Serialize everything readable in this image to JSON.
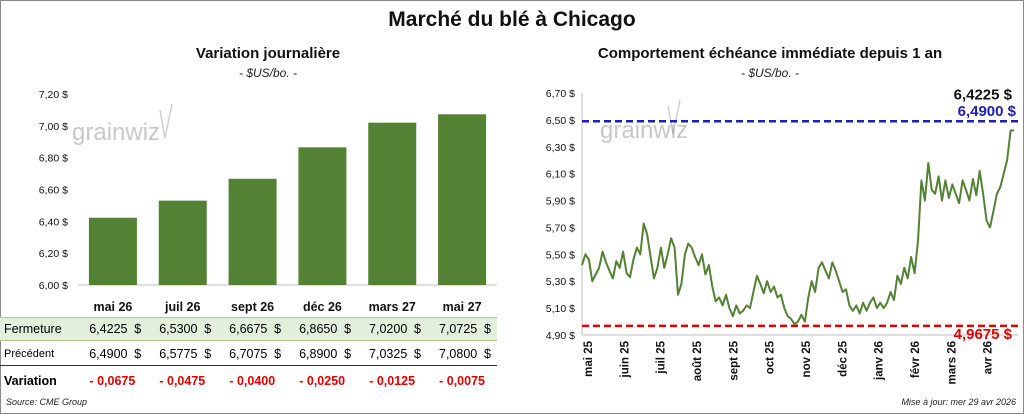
{
  "title": "Marché du blé à Chicago",
  "left_panel": {
    "title": "Variation journalière",
    "subtitle": "- $US/bo. -",
    "watermark": "grainwiz"
  },
  "right_panel": {
    "title": "Comportement échéance immédiate depuis 1 an",
    "subtitle": "- $US/bo. -",
    "watermark": "grainwiz",
    "last_label": "6,4225 $",
    "high_label": "6,4900 $",
    "low_label": "4,9675 $"
  },
  "table": {
    "rows": [
      {
        "label": "Fermeture",
        "values": [
          "6,4225",
          "6,5300",
          "6,6675",
          "6,8650",
          "7,0200",
          "7,0725"
        ],
        "unit": "$"
      },
      {
        "label": "Précédent",
        "values": [
          "6,4900",
          "6,5775",
          "6,7075",
          "6,8900",
          "7,0325",
          "7,0800"
        ],
        "unit": "$"
      },
      {
        "label": "Variation",
        "values": [
          "- 0,0675",
          "- 0,0475",
          "- 0,0400",
          "- 0,0250",
          "- 0,0125",
          "- 0,0075"
        ],
        "unit": ""
      }
    ]
  },
  "footer": {
    "source": "Source: CME Group",
    "updated": "Mise à jour: mer 29 avr 2026"
  },
  "colors": {
    "bar": "#548235",
    "line": "#548235",
    "high": "#1f1fb3",
    "low": "#e00000",
    "variation": "#e00000"
  },
  "chart_data": [
    {
      "type": "bar",
      "title": "Variation journalière",
      "subtitle": "- $US/bo. -",
      "categories": [
        "mai 26",
        "juil 26",
        "sept 26",
        "déc 26",
        "mars 27",
        "mai 27"
      ],
      "values": [
        6.4225,
        6.53,
        6.6675,
        6.865,
        7.02,
        7.0725
      ],
      "ylim": [
        6.0,
        7.2
      ],
      "yticks": [
        6.0,
        6.2,
        6.4,
        6.6,
        6.8,
        7.0,
        7.2
      ],
      "ytick_labels": [
        "6,00 $",
        "6,20 $",
        "6,40 $",
        "6,60 $",
        "6,80 $",
        "7,00 $",
        "7,20 $"
      ],
      "grid": false
    },
    {
      "type": "line",
      "title": "Comportement échéance immédiate depuis 1 an",
      "subtitle": "- $US/bo. -",
      "x_labels": [
        "mai 25",
        "juin 25",
        "juil 25",
        "août 25",
        "sept 25",
        "oct 25",
        "nov 25",
        "déc 25",
        "janv 26",
        "févr 26",
        "mars 26",
        "avr 26"
      ],
      "ylim": [
        4.9,
        6.7
      ],
      "yticks": [
        4.9,
        5.1,
        5.3,
        5.5,
        5.7,
        5.9,
        6.1,
        6.3,
        6.5,
        6.7
      ],
      "ytick_labels": [
        "4,90 $",
        "5,10 $",
        "5,30 $",
        "5,50 $",
        "5,70 $",
        "5,90 $",
        "6,10 $",
        "6,30 $",
        "6,50 $",
        "6,70 $"
      ],
      "reference_lines": [
        {
          "name": "high",
          "value": 6.49
        },
        {
          "name": "low",
          "value": 4.9675
        }
      ],
      "last_value": 6.4225,
      "series": [
        {
          "values": [
            5.42,
            5.5,
            5.46,
            5.3,
            5.35,
            5.4,
            5.52,
            5.44,
            5.38,
            5.32,
            5.45,
            5.4,
            5.52,
            5.36,
            5.33,
            5.46,
            5.55,
            5.5,
            5.73,
            5.65,
            5.48,
            5.32,
            5.4,
            5.55,
            5.4,
            5.5,
            5.62,
            5.55,
            5.2,
            5.28,
            5.5,
            5.58,
            5.55,
            5.48,
            5.42,
            5.5,
            5.35,
            5.42,
            5.26,
            5.15,
            5.18,
            5.12,
            5.2,
            5.1,
            5.04,
            5.12,
            5.06,
            5.08,
            5.12,
            5.1,
            5.22,
            5.34,
            5.28,
            5.21,
            5.3,
            5.22,
            5.26,
            5.18,
            5.2,
            5.1,
            5.04,
            5.02,
            4.98,
            5.0,
            5.05,
            5.0,
            5.18,
            5.3,
            5.22,
            5.4,
            5.44,
            5.38,
            5.32,
            5.44,
            5.38,
            5.3,
            5.22,
            5.24,
            5.12,
            5.08,
            5.12,
            5.06,
            5.14,
            5.08,
            5.14,
            5.18,
            5.1,
            5.14,
            5.1,
            5.14,
            5.22,
            5.16,
            5.34,
            5.28,
            5.4,
            5.32,
            5.48,
            5.36,
            5.6,
            6.05,
            5.9,
            6.18,
            5.98,
            5.95,
            6.08,
            5.9,
            6.05,
            5.92,
            6.02,
            5.95,
            5.88,
            6.05,
            5.98,
            5.9,
            6.06,
            5.94,
            6.12,
            5.95,
            5.75,
            5.7,
            5.82,
            5.95,
            6.0,
            6.1,
            6.2,
            6.42,
            6.4225
          ]
        }
      ]
    }
  ]
}
